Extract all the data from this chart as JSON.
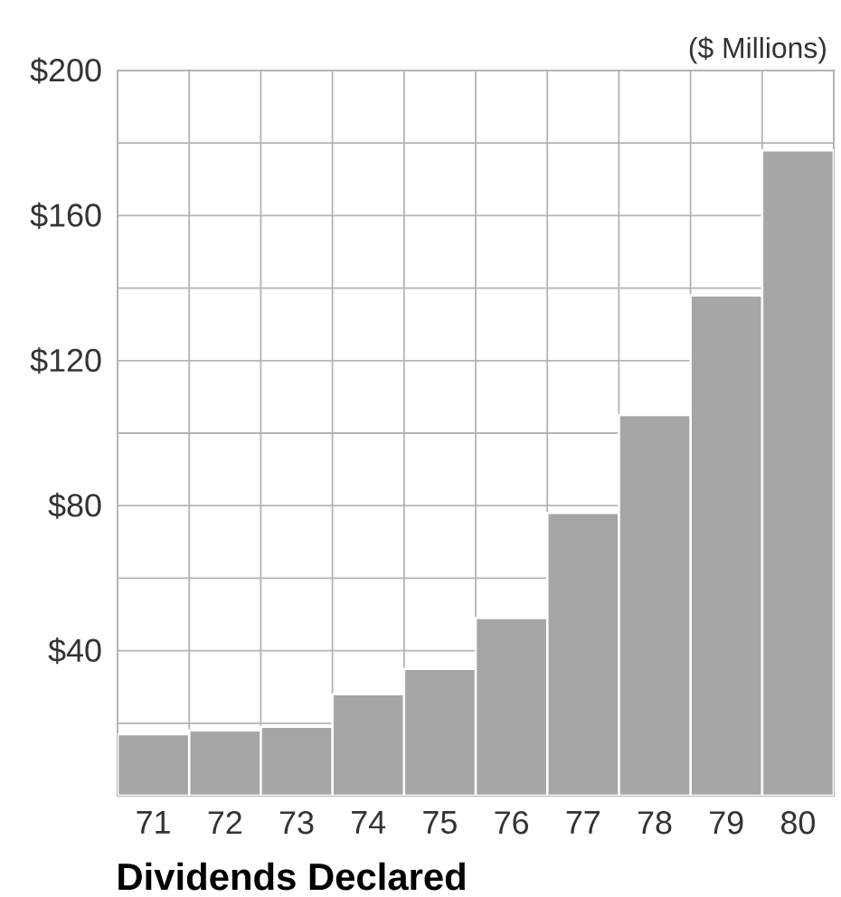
{
  "chart_data": {
    "type": "bar",
    "title": "Dividends Declared",
    "ylabel": "($ Millions)",
    "categories": [
      "71",
      "72",
      "73",
      "74",
      "75",
      "76",
      "77",
      "78",
      "79",
      "80"
    ],
    "values": [
      17,
      18,
      19,
      28,
      35,
      49,
      78,
      105,
      138,
      178
    ],
    "color": "#a6a6a6",
    "ylim": [
      0,
      200
    ],
    "yticks": [
      {
        "value": 20,
        "label": null
      },
      {
        "value": 40,
        "label": "$40"
      },
      {
        "value": 60,
        "label": null
      },
      {
        "value": 80,
        "label": "$80"
      },
      {
        "value": 100,
        "label": null
      },
      {
        "value": 120,
        "label": "$120"
      },
      {
        "value": 140,
        "label": null
      },
      {
        "value": 160,
        "label": "$160"
      },
      {
        "value": 180,
        "label": null
      },
      {
        "value": 200,
        "label": "$200"
      }
    ],
    "grid": true
  }
}
